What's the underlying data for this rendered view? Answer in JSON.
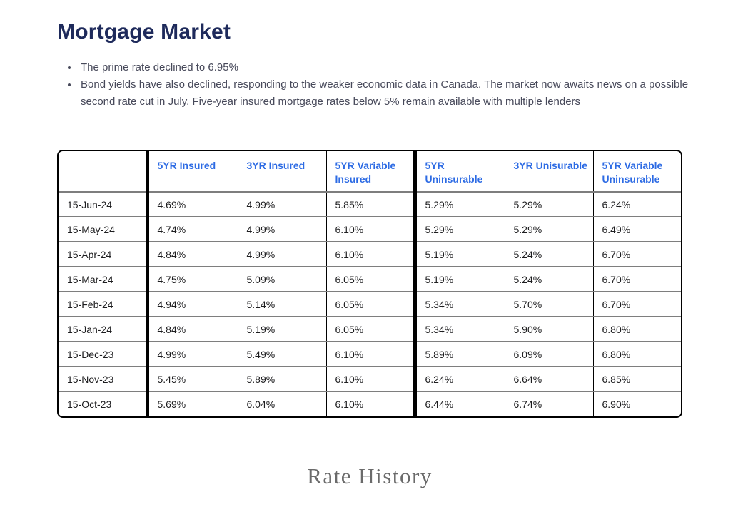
{
  "page": {
    "title": "Mortgage Market",
    "bullets": [
      "The prime rate declined to 6.95%",
      "Bond yields have also declined, responding to the weaker economic data in Canada. The market now awaits news on a possible second rate cut in July. Five-year insured mortgage rates below 5% remain available with multiple lenders"
    ],
    "footer_caption": "Rate History"
  },
  "table": {
    "columns": [
      "",
      "5YR Insured",
      "3YR Insured",
      "5YR Variable Insured",
      "5YR Uninsurable",
      "3YR Unisurable",
      "5YR Variable Uninsurable"
    ],
    "thick_border_column_indexes": [
      1,
      4
    ],
    "rows": [
      {
        "date": "15-Jun-24",
        "values": [
          "4.69%",
          "4.99%",
          "5.85%",
          "5.29%",
          "5.29%",
          "6.24%"
        ]
      },
      {
        "date": "15-May-24",
        "values": [
          "4.74%",
          "4.99%",
          "6.10%",
          "5.29%",
          "5.29%",
          "6.49%"
        ]
      },
      {
        "date": "15-Apr-24",
        "values": [
          "4.84%",
          "4.99%",
          "6.10%",
          "5.19%",
          "5.24%",
          "6.70%"
        ]
      },
      {
        "date": "15-Mar-24",
        "values": [
          "4.75%",
          "5.09%",
          "6.05%",
          "5.19%",
          "5.24%",
          "6.70%"
        ]
      },
      {
        "date": "15-Feb-24",
        "values": [
          "4.94%",
          "5.14%",
          "6.05%",
          "5.34%",
          "5.70%",
          "6.70%"
        ]
      },
      {
        "date": "15-Jan-24",
        "values": [
          "4.84%",
          "5.19%",
          "6.05%",
          "5.34%",
          "5.90%",
          "6.80%"
        ]
      },
      {
        "date": "15-Dec-23",
        "values": [
          "4.99%",
          "5.49%",
          "6.10%",
          "5.89%",
          "6.09%",
          "6.80%"
        ]
      },
      {
        "date": "15-Nov-23",
        "values": [
          "5.45%",
          "5.89%",
          "6.10%",
          "6.24%",
          "6.64%",
          "6.85%"
        ]
      },
      {
        "date": "15-Oct-23",
        "values": [
          "5.69%",
          "6.04%",
          "6.10%",
          "6.44%",
          "6.74%",
          "6.90%"
        ]
      }
    ]
  },
  "colors": {
    "title": "#1e2a5b",
    "body_text": "#47495a",
    "header_blue": "#2d6be4",
    "cell_text": "#1d1d1f",
    "grid_gray": "#7e7e7e",
    "caption_gray": "#6a6a6a"
  }
}
